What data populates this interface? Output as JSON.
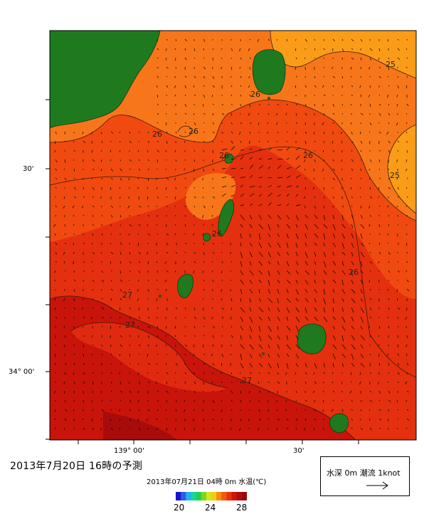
{
  "map": {
    "lat_labels": [
      "30'",
      "34° 00'"
    ],
    "lon_labels": [
      "139° 00'",
      "30'"
    ],
    "contour_labels": [
      "25",
      "25",
      "26",
      "26",
      "26",
      "26",
      "26",
      "26",
      "26",
      "27",
      "27",
      "27"
    ]
  },
  "caption": "2013年7月20日  16時の予測",
  "subcaption": "2013年07月21日 04時 0m 水温(℃)",
  "legend": {
    "title": "水深 0m 潮流 1knot",
    "arrow_icon": "right-arrow-icon"
  },
  "colorbar": {
    "labels": [
      "20",
      "24",
      "28"
    ],
    "colors": [
      "#1a14c8",
      "#2a5cf0",
      "#1eb4e6",
      "#18d2a0",
      "#22d04a",
      "#7ad622",
      "#d2e61a",
      "#f5c814",
      "#f58c0e",
      "#f05a0c",
      "#e6320a",
      "#d2140a",
      "#b40a0a",
      "#960808"
    ]
  },
  "colors": {
    "land": "#1f7a1f",
    "water_27": "#e02a10",
    "water_26": "#f0460e",
    "water_25": "#f86e14",
    "water_24": "#fb9a14",
    "water_28": "#c81008"
  }
}
